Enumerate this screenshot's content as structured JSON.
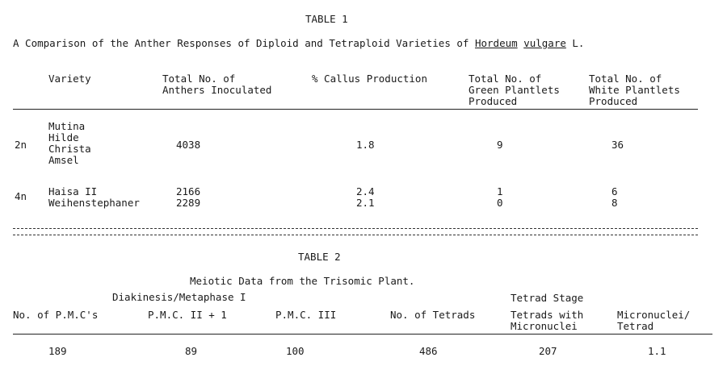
{
  "table1": {
    "heading": "TABLE 1",
    "caption_prefix": "A Comparison of the Anther Responses of Diploid and Tetraploid Varieties of",
    "caption_genus": "Hordeum",
    "caption_species": "vulgare",
    "caption_suffix": "L.",
    "columns": {
      "variety": "Variety",
      "anthers": "Total No. of\nAnthers Inoculated",
      "callus": "% Callus Production",
      "green": "Total No. of\nGreen Plantlets\nProduced",
      "white": "Total No. of\nWhite Plantlets\nProduced"
    },
    "groups": [
      {
        "ploidy": "2n",
        "varieties": "Mutina\nHilde\nChrista\nAmsel",
        "anthers": "4038",
        "callus": "1.8",
        "green": "9",
        "white": "36"
      },
      {
        "ploidy": "4n",
        "varieties": "Haisa II\nWeihenstephaner",
        "anthers": "2166\n2289",
        "callus": "2.4\n2.1",
        "green": "1\n0",
        "white": "6\n8"
      }
    ]
  },
  "table2": {
    "heading": "TABLE 2",
    "caption": "Meiotic Data from the Trisomic Plant.",
    "group_left": "Diakinesis/Metaphase I",
    "group_right": "Tetrad Stage",
    "columns": {
      "pmc": "No. of P.M.C's",
      "pmc2": "P.M.C. II + 1",
      "pmc3": "P.M.C. III",
      "tetrads": "No. of Tetrads",
      "tetrads_micro": "Tetrads with\nMicronuclei",
      "micro_per": "Micronuclei/\nTetrad"
    },
    "row": {
      "pmc": "189",
      "pmc2": "89",
      "pmc3": "100",
      "tetrads": "486",
      "tetrads_micro": "207",
      "micro_per": "1.1"
    }
  }
}
